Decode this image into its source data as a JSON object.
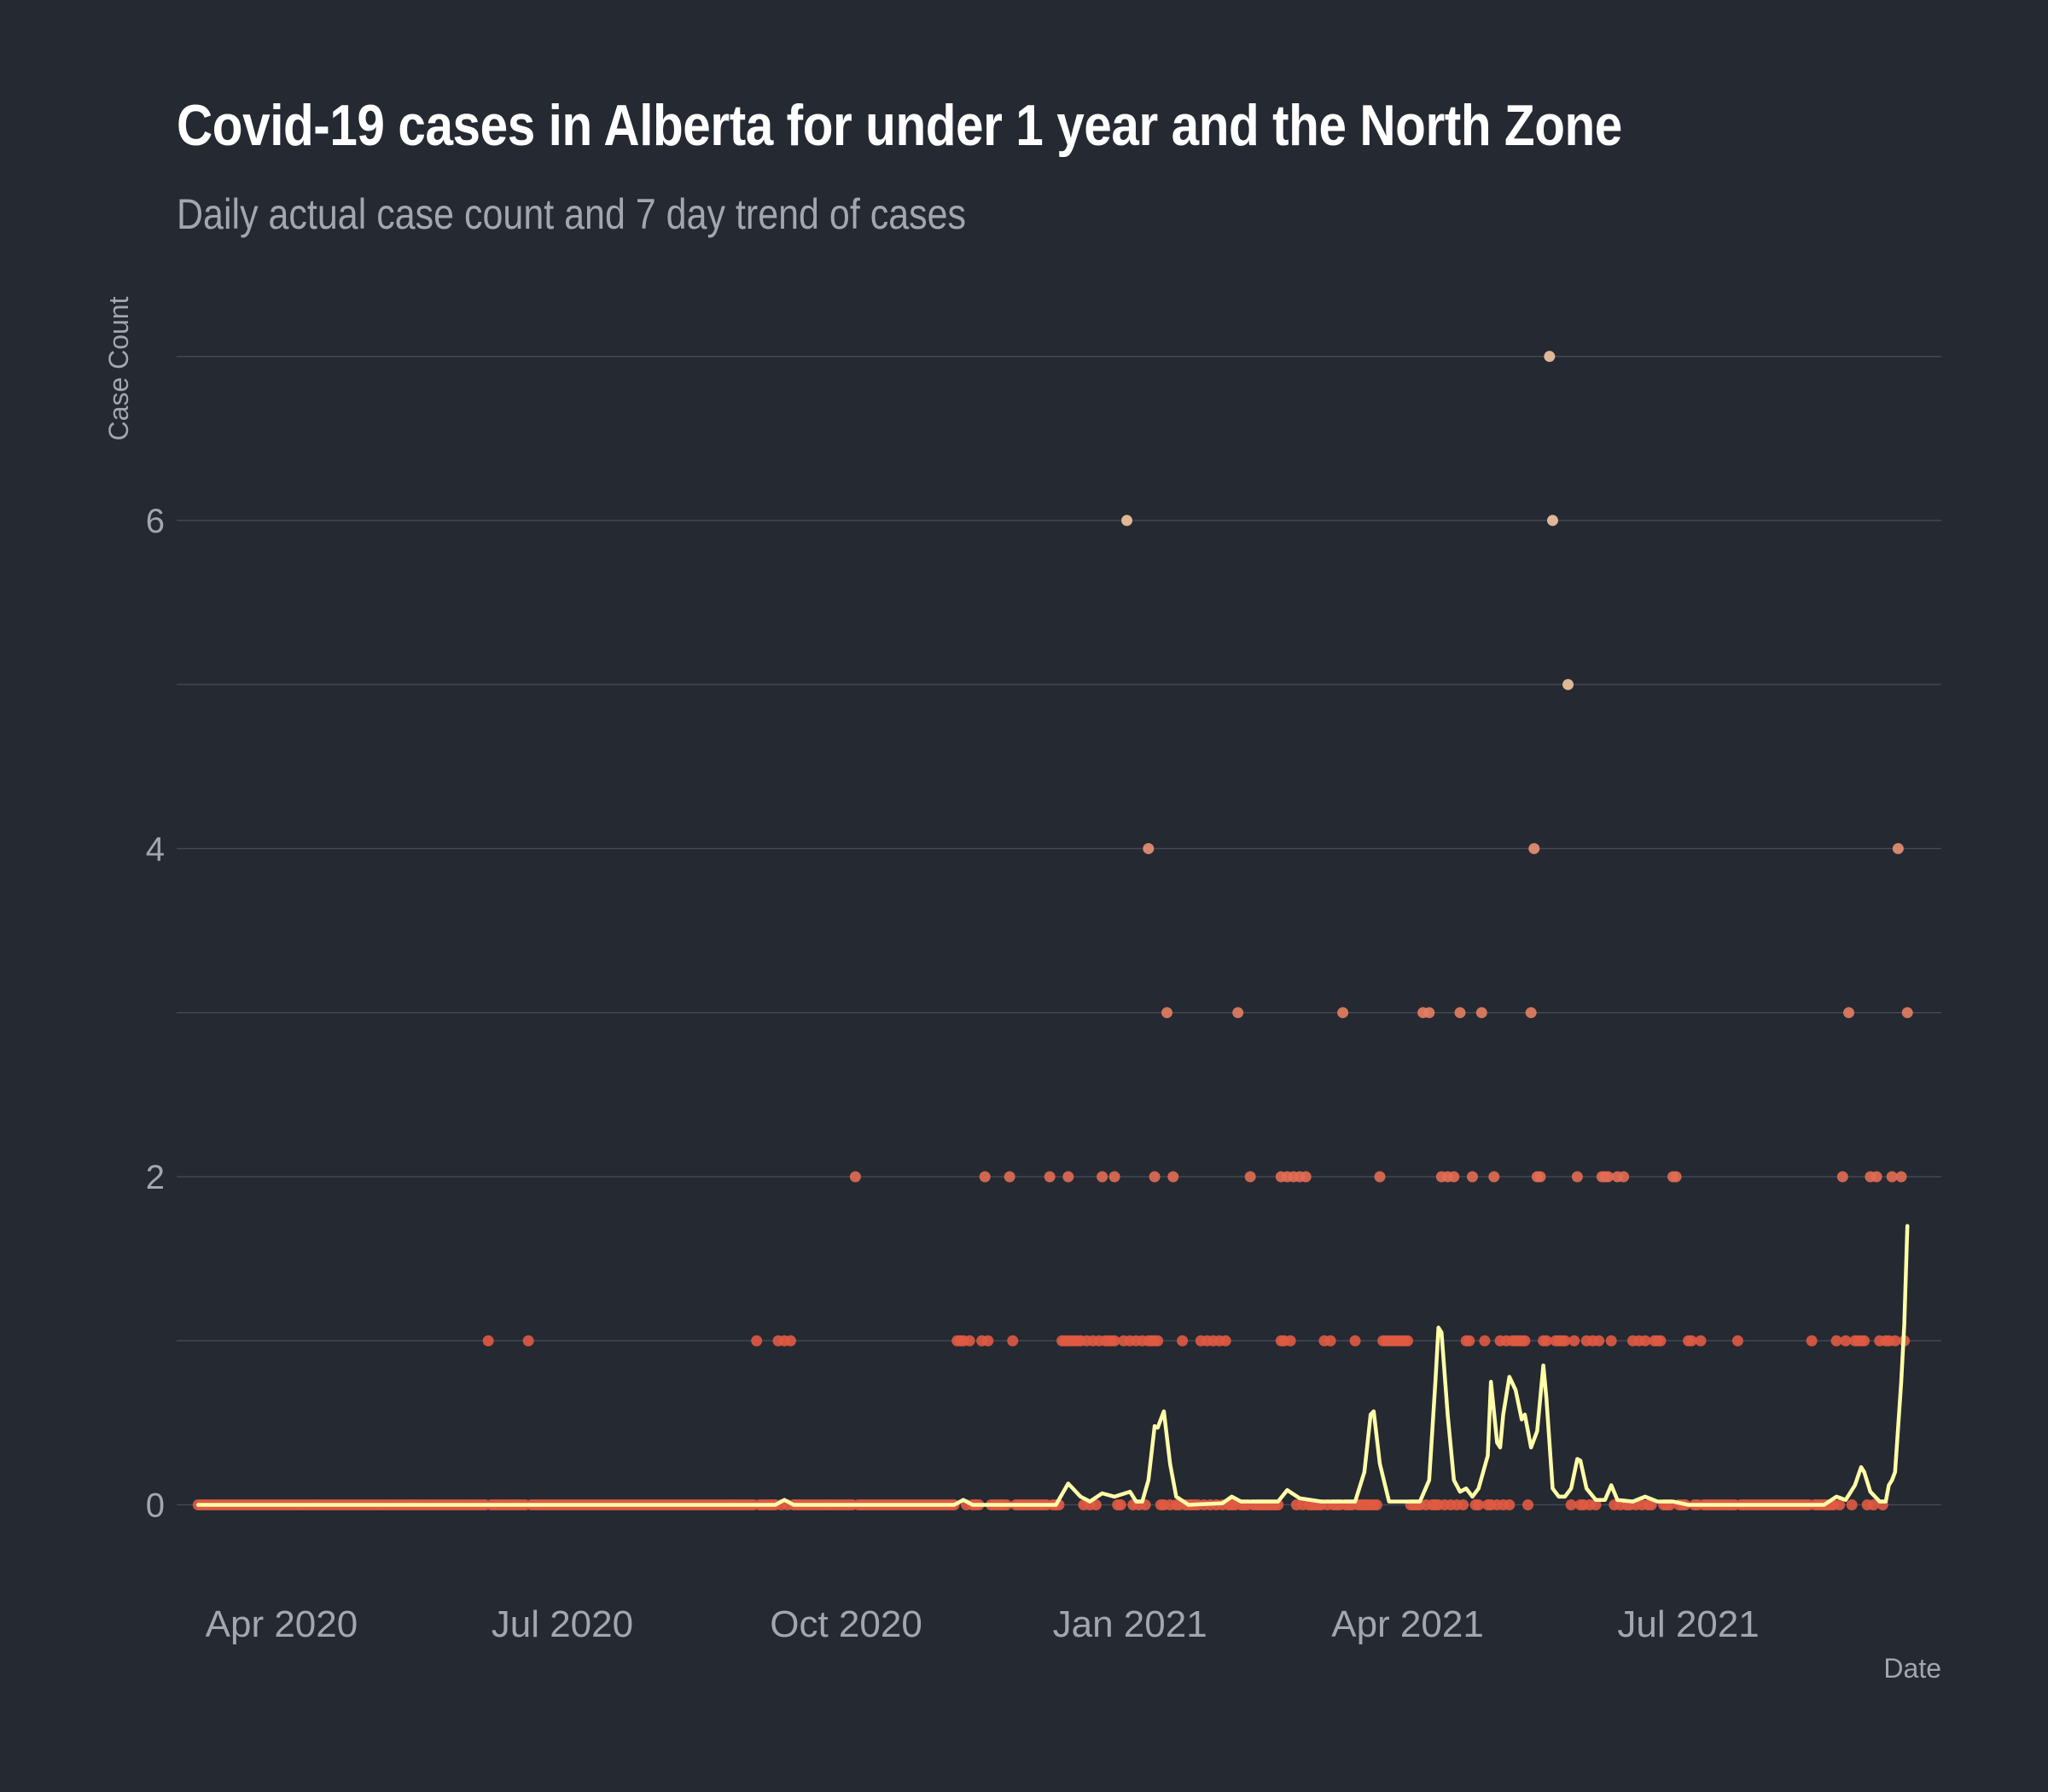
{
  "chart_data": {
    "type": "scatter",
    "title": "Covid-19 cases in Alberta for under 1 year and the North Zone",
    "subtitle": "Daily actual case count and 7 day trend of cases",
    "xlabel": "Date",
    "ylabel": "Case Count",
    "x_ticks": [
      "Apr 2020",
      "Jul 2020",
      "Oct 2020",
      "Jan 2021",
      "Apr 2021",
      "Jul 2021"
    ],
    "x_tick_values": [
      "2020-04-01",
      "2020-07-01",
      "2020-10-01",
      "2021-01-01",
      "2021-04-01",
      "2021-07-01"
    ],
    "xlim": [
      "2020-02-27",
      "2021-09-21"
    ],
    "y_ticks": [
      0,
      2,
      4,
      6
    ],
    "ylim": [
      -0.45,
      7.3
    ],
    "grid": true,
    "legend": "none",
    "colors": {
      "background": "#252932",
      "gridline": "#454a55",
      "point_low": "#e05a43",
      "point_high": "#f3c7a0",
      "trend": "#ffffa8"
    },
    "series": [
      {
        "type": "scatter",
        "points": [
          [
            "2020-06-07",
            1
          ],
          [
            "2020-06-20",
            1
          ],
          [
            "2020-09-02",
            1
          ],
          [
            "2020-09-09",
            1
          ],
          [
            "2020-09-11",
            1
          ],
          [
            "2020-09-13",
            1
          ],
          [
            "2020-10-04",
            2
          ],
          [
            "2020-11-06",
            1
          ],
          [
            "2020-11-07",
            1
          ],
          [
            "2020-11-08",
            1
          ],
          [
            "2020-11-10",
            1
          ],
          [
            "2020-11-14",
            1
          ],
          [
            "2020-11-16",
            1
          ],
          [
            "2020-11-24",
            1
          ],
          [
            "2020-11-15",
            2
          ],
          [
            "2020-11-23",
            2
          ],
          [
            "2020-12-06",
            2
          ],
          [
            "2020-12-12",
            2
          ],
          [
            "2020-12-23",
            2
          ],
          [
            "2020-12-27",
            2
          ],
          [
            "2020-12-10",
            1
          ],
          [
            "2020-12-11",
            1
          ],
          [
            "2020-12-12",
            1
          ],
          [
            "2020-12-13",
            1
          ],
          [
            "2020-12-14",
            1
          ],
          [
            "2020-12-15",
            1
          ],
          [
            "2020-12-16",
            1
          ],
          [
            "2020-12-18",
            1
          ],
          [
            "2020-12-20",
            1
          ],
          [
            "2020-12-22",
            1
          ],
          [
            "2020-12-24",
            1
          ],
          [
            "2020-12-25",
            1
          ],
          [
            "2020-12-26",
            1
          ],
          [
            "2020-12-27",
            1
          ],
          [
            "2020-12-30",
            1
          ],
          [
            "2021-01-01",
            1
          ],
          [
            "2021-01-03",
            1
          ],
          [
            "2021-01-05",
            1
          ],
          [
            "2021-01-07",
            1
          ],
          [
            "2021-01-08",
            1
          ],
          [
            "2021-01-09",
            1
          ],
          [
            "2021-01-10",
            1
          ],
          [
            "2020-12-31",
            6
          ],
          [
            "2021-01-07",
            4
          ],
          [
            "2021-01-09",
            2
          ],
          [
            "2021-01-13",
            3
          ],
          [
            "2021-01-15",
            2
          ],
          [
            "2021-01-18",
            1
          ],
          [
            "2021-01-24",
            1
          ],
          [
            "2021-01-26",
            1
          ],
          [
            "2021-01-28",
            1
          ],
          [
            "2021-01-30",
            1
          ],
          [
            "2021-02-01",
            1
          ],
          [
            "2021-02-05",
            3
          ],
          [
            "2021-02-09",
            2
          ],
          [
            "2021-02-19",
            1
          ],
          [
            "2021-02-20",
            1
          ],
          [
            "2021-02-22",
            1
          ],
          [
            "2021-02-19",
            2
          ],
          [
            "2021-02-21",
            2
          ],
          [
            "2021-02-23",
            2
          ],
          [
            "2021-02-25",
            2
          ],
          [
            "2021-02-27",
            2
          ],
          [
            "2021-03-05",
            1
          ],
          [
            "2021-03-07",
            1
          ],
          [
            "2021-03-11",
            3
          ],
          [
            "2021-03-15",
            1
          ],
          [
            "2021-03-23",
            2
          ],
          [
            "2021-03-24",
            1
          ],
          [
            "2021-03-25",
            1
          ],
          [
            "2021-03-26",
            1
          ],
          [
            "2021-03-27",
            1
          ],
          [
            "2021-03-28",
            1
          ],
          [
            "2021-03-29",
            1
          ],
          [
            "2021-03-30",
            1
          ],
          [
            "2021-03-31",
            1
          ],
          [
            "2021-04-01",
            1
          ],
          [
            "2021-04-06",
            3
          ],
          [
            "2021-04-08",
            3
          ],
          [
            "2021-04-12",
            2
          ],
          [
            "2021-04-14",
            2
          ],
          [
            "2021-04-16",
            2
          ],
          [
            "2021-04-18",
            3
          ],
          [
            "2021-04-20",
            1
          ],
          [
            "2021-04-21",
            1
          ],
          [
            "2021-04-22",
            2
          ],
          [
            "2021-04-25",
            3
          ],
          [
            "2021-04-26",
            1
          ],
          [
            "2021-04-29",
            2
          ],
          [
            "2021-05-01",
            1
          ],
          [
            "2021-05-03",
            1
          ],
          [
            "2021-05-05",
            1
          ],
          [
            "2021-05-06",
            1
          ],
          [
            "2021-05-07",
            1
          ],
          [
            "2021-05-08",
            1
          ],
          [
            "2021-05-09",
            1
          ],
          [
            "2021-05-11",
            3
          ],
          [
            "2021-05-12",
            4
          ],
          [
            "2021-05-13",
            2
          ],
          [
            "2021-05-14",
            2
          ],
          [
            "2021-05-15",
            1
          ],
          [
            "2021-05-16",
            1
          ],
          [
            "2021-05-17",
            7
          ],
          [
            "2021-05-18",
            6
          ],
          [
            "2021-05-19",
            1
          ],
          [
            "2021-05-20",
            1
          ],
          [
            "2021-05-21",
            1
          ],
          [
            "2021-05-22",
            1
          ],
          [
            "2021-05-23",
            5
          ],
          [
            "2021-05-25",
            1
          ],
          [
            "2021-05-26",
            2
          ],
          [
            "2021-05-29",
            1
          ],
          [
            "2021-05-31",
            1
          ],
          [
            "2021-06-02",
            1
          ],
          [
            "2021-06-03",
            2
          ],
          [
            "2021-06-04",
            2
          ],
          [
            "2021-06-05",
            2
          ],
          [
            "2021-06-06",
            1
          ],
          [
            "2021-06-08",
            2
          ],
          [
            "2021-06-10",
            2
          ],
          [
            "2021-06-13",
            1
          ],
          [
            "2021-06-15",
            1
          ],
          [
            "2021-06-17",
            1
          ],
          [
            "2021-06-20",
            1
          ],
          [
            "2021-06-21",
            1
          ],
          [
            "2021-06-22",
            1
          ],
          [
            "2021-06-26",
            2
          ],
          [
            "2021-06-27",
            2
          ],
          [
            "2021-07-01",
            1
          ],
          [
            "2021-07-02",
            1
          ],
          [
            "2021-07-05",
            1
          ],
          [
            "2021-07-17",
            1
          ],
          [
            "2021-08-10",
            1
          ],
          [
            "2021-08-18",
            1
          ],
          [
            "2021-08-20",
            2
          ],
          [
            "2021-08-21",
            1
          ],
          [
            "2021-08-22",
            3
          ],
          [
            "2021-08-24",
            1
          ],
          [
            "2021-08-25",
            1
          ],
          [
            "2021-08-26",
            1
          ],
          [
            "2021-08-27",
            1
          ],
          [
            "2021-08-29",
            2
          ],
          [
            "2021-08-31",
            2
          ],
          [
            "2021-09-01",
            1
          ],
          [
            "2021-09-03",
            1
          ],
          [
            "2021-09-04",
            1
          ],
          [
            "2021-09-05",
            2
          ],
          [
            "2021-09-06",
            1
          ],
          [
            "2021-09-07",
            4
          ],
          [
            "2021-09-08",
            2
          ],
          [
            "2021-09-09",
            1
          ],
          [
            "2021-09-10",
            3
          ]
        ],
        "zero_range": [
          "2020-03-05",
          "2021-09-10"
        ]
      },
      {
        "type": "line",
        "points": [
          [
            "2020-03-05",
            0
          ],
          [
            "2020-09-08",
            0
          ],
          [
            "2020-09-11",
            0.03
          ],
          [
            "2020-09-14",
            0
          ],
          [
            "2020-11-05",
            0
          ],
          [
            "2020-11-08",
            0.03
          ],
          [
            "2020-11-11",
            0
          ],
          [
            "2020-11-24",
            0
          ],
          [
            "2020-12-08",
            0
          ],
          [
            "2020-12-12",
            0.13
          ],
          [
            "2020-12-16",
            0.05
          ],
          [
            "2020-12-19",
            0.02
          ],
          [
            "2020-12-23",
            0.07
          ],
          [
            "2020-12-27",
            0.05
          ],
          [
            "2021-01-01",
            0.08
          ],
          [
            "2021-01-03",
            0.02
          ],
          [
            "2021-01-05",
            0.02
          ],
          [
            "2021-01-07",
            0.15
          ],
          [
            "2021-01-09",
            0.48
          ],
          [
            "2021-01-10",
            0.47
          ],
          [
            "2021-01-12",
            0.57
          ],
          [
            "2021-01-14",
            0.25
          ],
          [
            "2021-01-16",
            0.05
          ],
          [
            "2021-01-20",
            0
          ],
          [
            "2021-01-31",
            0.01
          ],
          [
            "2021-02-03",
            0.05
          ],
          [
            "2021-02-06",
            0.02
          ],
          [
            "2021-02-18",
            0.02
          ],
          [
            "2021-02-21",
            0.09
          ],
          [
            "2021-02-25",
            0.04
          ],
          [
            "2021-03-04",
            0.02
          ],
          [
            "2021-03-15",
            0.02
          ],
          [
            "2021-03-18",
            0.2
          ],
          [
            "2021-03-20",
            0.55
          ],
          [
            "2021-03-21",
            0.57
          ],
          [
            "2021-03-23",
            0.25
          ],
          [
            "2021-03-26",
            0.02
          ],
          [
            "2021-04-05",
            0.02
          ],
          [
            "2021-04-08",
            0.15
          ],
          [
            "2021-04-10",
            0.75
          ],
          [
            "2021-04-11",
            1.08
          ],
          [
            "2021-04-12",
            1.05
          ],
          [
            "2021-04-14",
            0.55
          ],
          [
            "2021-04-16",
            0.15
          ],
          [
            "2021-04-18",
            0.08
          ],
          [
            "2021-04-20",
            0.1
          ],
          [
            "2021-04-22",
            0.05
          ],
          [
            "2021-04-24",
            0.1
          ],
          [
            "2021-04-27",
            0.3
          ],
          [
            "2021-04-28",
            0.75
          ],
          [
            "2021-04-30",
            0.38
          ],
          [
            "2021-05-01",
            0.35
          ],
          [
            "2021-05-02",
            0.55
          ],
          [
            "2021-05-04",
            0.78
          ],
          [
            "2021-05-06",
            0.7
          ],
          [
            "2021-05-08",
            0.52
          ],
          [
            "2021-05-09",
            0.55
          ],
          [
            "2021-05-11",
            0.35
          ],
          [
            "2021-05-13",
            0.45
          ],
          [
            "2021-05-15",
            0.85
          ],
          [
            "2021-05-16",
            0.65
          ],
          [
            "2021-05-18",
            0.1
          ],
          [
            "2021-05-20",
            0.05
          ],
          [
            "2021-05-22",
            0.05
          ],
          [
            "2021-05-24",
            0.1
          ],
          [
            "2021-05-26",
            0.28
          ],
          [
            "2021-05-27",
            0.27
          ],
          [
            "2021-05-29",
            0.1
          ],
          [
            "2021-06-01",
            0.03
          ],
          [
            "2021-06-04",
            0.03
          ],
          [
            "2021-06-06",
            0.12
          ],
          [
            "2021-06-08",
            0.03
          ],
          [
            "2021-06-13",
            0.02
          ],
          [
            "2021-06-17",
            0.05
          ],
          [
            "2021-06-21",
            0.02
          ],
          [
            "2021-06-26",
            0.02
          ],
          [
            "2021-07-01",
            0
          ],
          [
            "2021-08-14",
            0
          ],
          [
            "2021-08-18",
            0.05
          ],
          [
            "2021-08-21",
            0.03
          ],
          [
            "2021-08-24",
            0.12
          ],
          [
            "2021-08-26",
            0.23
          ],
          [
            "2021-08-27",
            0.2
          ],
          [
            "2021-08-29",
            0.08
          ],
          [
            "2021-09-01",
            0.02
          ],
          [
            "2021-09-03",
            0.02
          ],
          [
            "2021-09-04",
            0.12
          ],
          [
            "2021-09-05",
            0.15
          ],
          [
            "2021-09-06",
            0.2
          ],
          [
            "2021-09-08",
            0.75
          ],
          [
            "2021-09-09",
            1.1
          ],
          [
            "2021-09-10",
            1.7
          ]
        ]
      }
    ]
  }
}
